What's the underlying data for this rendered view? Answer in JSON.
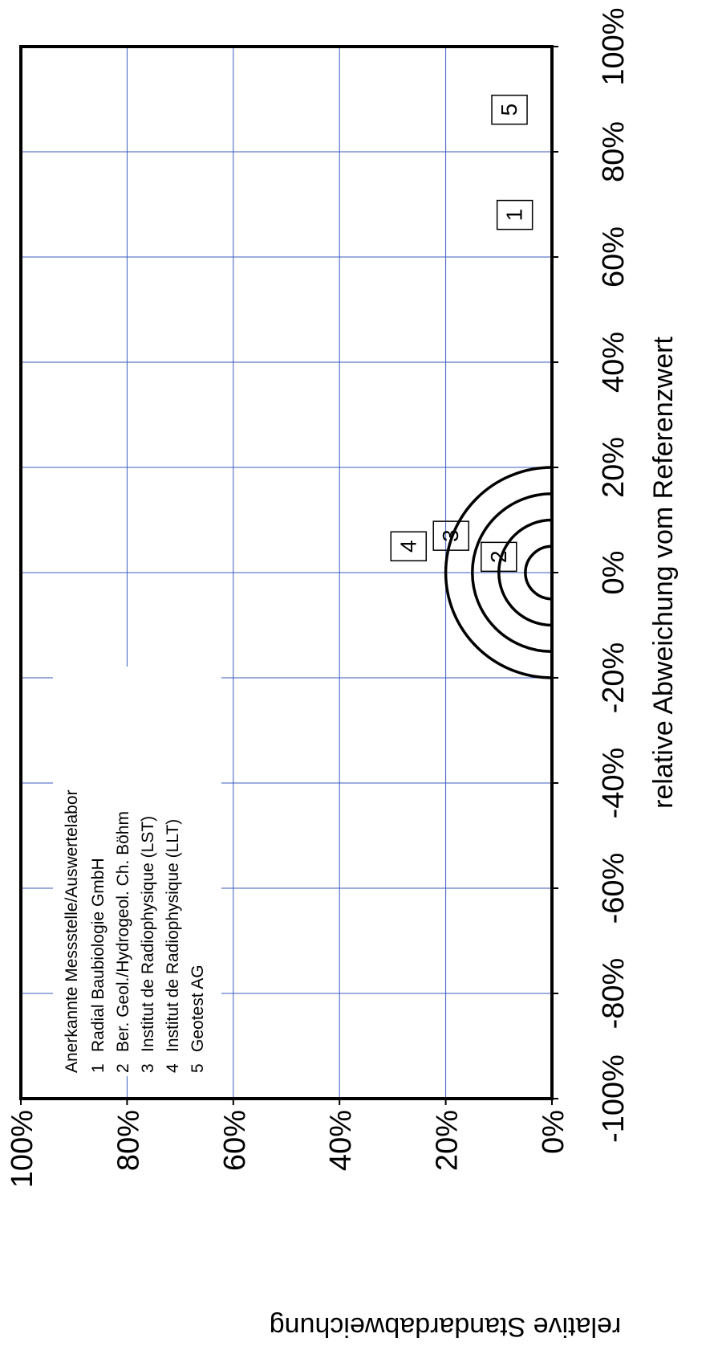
{
  "chart_data": {
    "type": "scatter",
    "rotated": "90deg-clockwise",
    "xlabel": "relative Abweichung vom Referenzwert",
    "ylabel": "relative Standardabweichung",
    "xlim": [
      -1.0,
      1.0
    ],
    "ylim": [
      0,
      1.0
    ],
    "x_ticks": [
      -1.0,
      -0.8,
      -0.6,
      -0.4,
      -0.2,
      0,
      0.2,
      0.4,
      0.6,
      0.8,
      1.0
    ],
    "y_ticks": [
      0,
      0.2,
      0.4,
      0.6,
      0.8,
      1.0
    ],
    "x_tick_labels": [
      "-100%",
      "-80%",
      "-60%",
      "-40%",
      "-20%",
      "0%",
      "20%",
      "40%",
      "60%",
      "80%",
      "100%"
    ],
    "y_tick_labels": [
      "0%",
      "20%",
      "40%",
      "60%",
      "80%",
      "100%"
    ],
    "grid": true,
    "grid_color": "#3b5bbf",
    "reference_circles": [
      0.05,
      0.1,
      0.15,
      0.2
    ],
    "points": [
      {
        "label": "1",
        "x": 0.68,
        "y": 0.07
      },
      {
        "label": "2",
        "x": 0.03,
        "y": 0.1
      },
      {
        "label": "3",
        "x": 0.07,
        "y": 0.19
      },
      {
        "label": "4",
        "x": 0.05,
        "y": 0.27
      },
      {
        "label": "5",
        "x": 0.88,
        "y": 0.08
      }
    ],
    "legend": {
      "title": "Anerkannte Messstelle/Auswertelabor",
      "entries": [
        {
          "num": "1",
          "name": "Radial Baubiologie GmbH"
        },
        {
          "num": "2",
          "name": "Ber. Geol./Hydrogeol. Ch. Böhm"
        },
        {
          "num": "3",
          "name": "Institut de Radiophysique (LST)"
        },
        {
          "num": "4",
          "name": "Institut de Radiophysique (LLT)"
        },
        {
          "num": "5",
          "name": "Geotest AG"
        }
      ],
      "position": "top-left"
    }
  }
}
